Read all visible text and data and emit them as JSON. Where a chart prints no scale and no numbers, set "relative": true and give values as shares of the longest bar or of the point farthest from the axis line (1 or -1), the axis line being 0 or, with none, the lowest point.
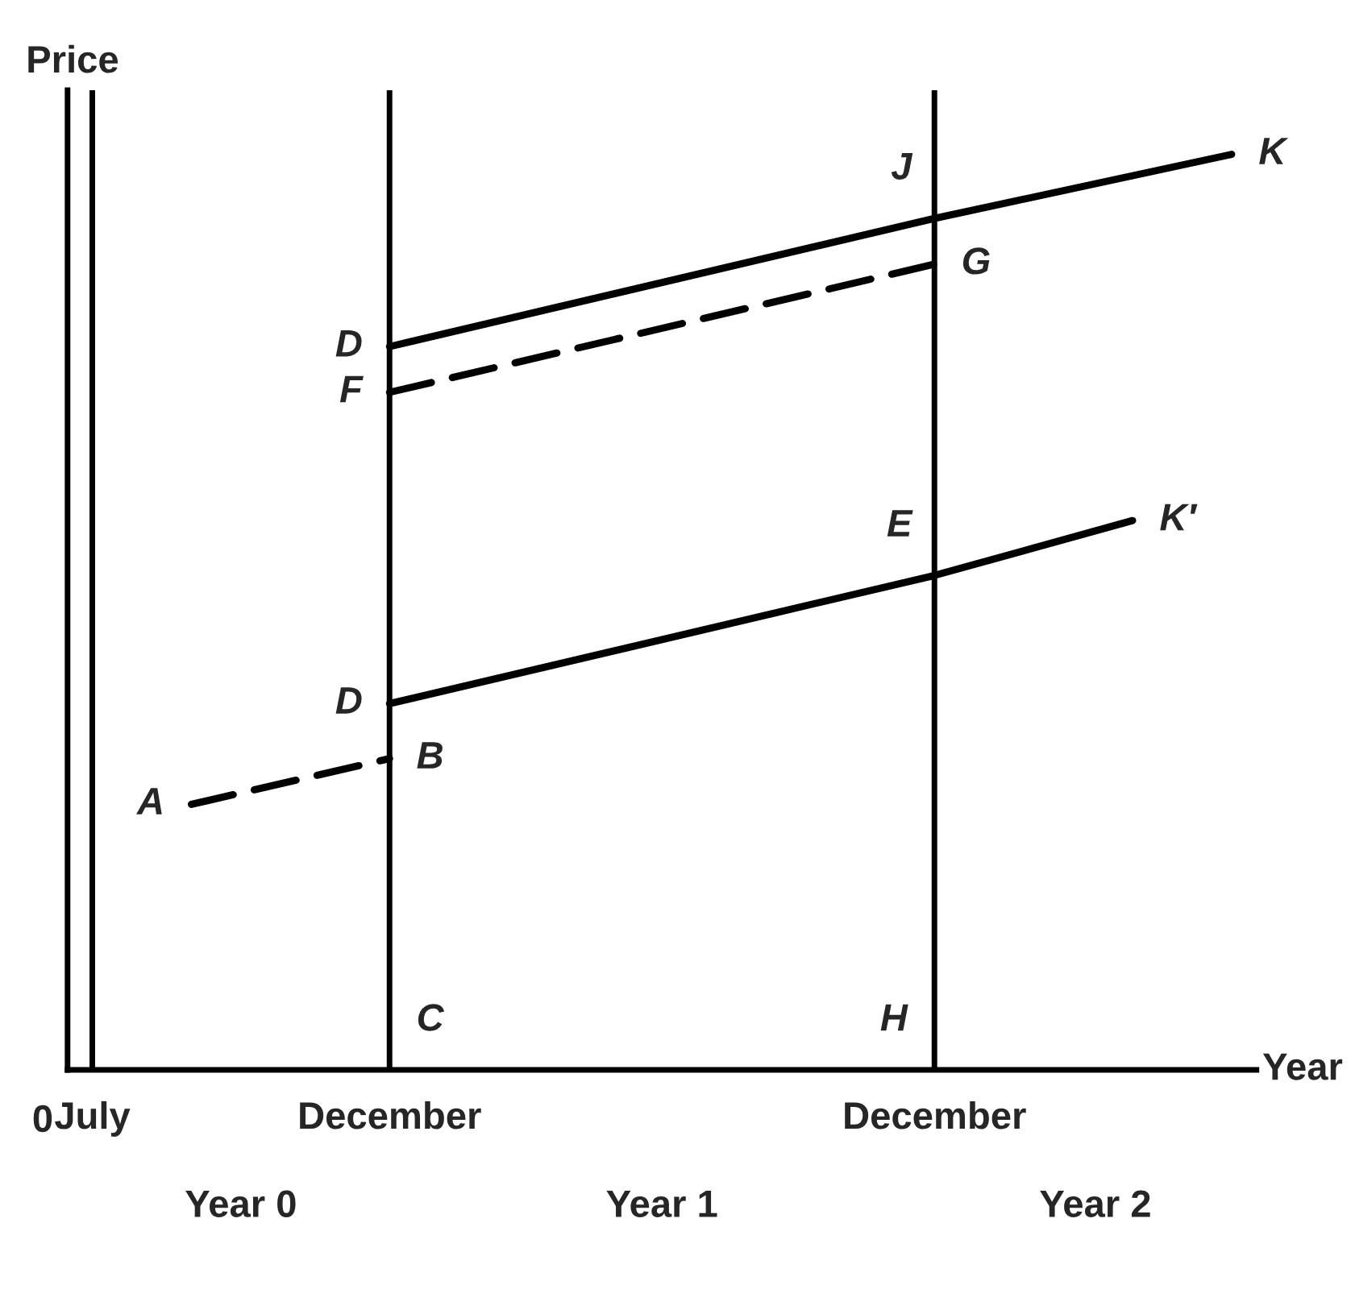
{
  "chart_data": {
    "type": "line",
    "relative": true,
    "xlabel": "Year",
    "ylabel": "Price",
    "categories": [
      "July",
      null,
      null,
      null,
      null,
      null,
      "December",
      null,
      null,
      null,
      null,
      null,
      null,
      null,
      null,
      null,
      null,
      "December",
      null,
      null,
      null,
      null,
      null,
      null
    ],
    "series": [
      {
        "color": "#000000",
        "line_style": "dashed",
        "values": [
          null,
          null,
          0.29,
          null,
          null,
          null,
          0.34,
          null,
          null,
          null,
          null,
          null,
          null,
          null,
          null,
          null,
          null,
          null,
          null,
          null,
          null,
          null,
          null,
          null
        ]
      },
      {
        "color": "#000000",
        "line_style": "solid",
        "values": [
          null,
          null,
          null,
          null,
          null,
          null,
          0.4,
          null,
          null,
          null,
          null,
          null,
          null,
          null,
          null,
          null,
          null,
          0.54,
          null,
          null,
          null,
          0.6,
          null,
          null
        ]
      },
      {
        "color": "#000000",
        "line_style": "solid",
        "values": [
          null,
          null,
          null,
          null,
          null,
          null,
          0.79,
          null,
          null,
          null,
          null,
          null,
          null,
          null,
          null,
          null,
          null,
          0.93,
          null,
          null,
          null,
          null,
          null,
          1.0
        ]
      },
      {
        "color": "#000000",
        "line_style": "dashed",
        "values": [
          null,
          null,
          null,
          null,
          null,
          null,
          0.74,
          null,
          null,
          null,
          null,
          null,
          null,
          null,
          null,
          null,
          null,
          0.88,
          null,
          null,
          null,
          null,
          null,
          null
        ]
      }
    ],
    "annotations": [
      "0",
      "Year 0",
      "Year 1",
      "Year 2",
      "A",
      "B",
      "D",
      "E",
      "K′",
      "D",
      "J",
      "K",
      "F",
      "G",
      "C",
      "H"
    ],
    "grid": "x",
    "legend": false,
    "marker": "none"
  }
}
